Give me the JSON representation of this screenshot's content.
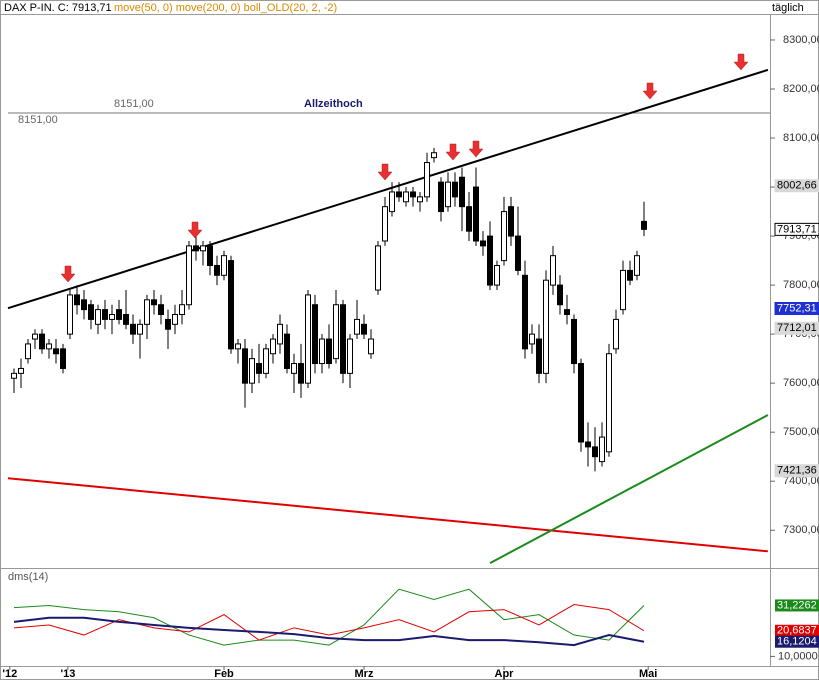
{
  "chart_data": {
    "type": "candlestick",
    "title": "DAX P-IN. C: 7913,71",
    "subtitle": "move(50, 0) move(200, 0) boll_OLD(20, 2, -2)",
    "period": "täglich",
    "ylim": [
      7225,
      8353
    ],
    "yticks": [
      {
        "value": 7300,
        "label": "7300,00"
      },
      {
        "value": 7400,
        "label": "7400,00"
      },
      {
        "value": 7500,
        "label": "7500,00"
      },
      {
        "value": 7600,
        "label": "7600,00"
      },
      {
        "value": 7700,
        "label": "7700,00"
      },
      {
        "value": 7800,
        "label": "7800,00"
      },
      {
        "value": 7900,
        "label": "7900,00"
      },
      {
        "value": 8000,
        "label": "8000,00"
      },
      {
        "value": 8100,
        "label": "8100,00"
      },
      {
        "value": 8200,
        "label": "8200,00"
      },
      {
        "value": 8300,
        "label": "8300,00"
      }
    ],
    "xticks": [
      {
        "value": -0.6,
        "label": "'12"
      },
      {
        "value": 7.7,
        "label": "'13"
      },
      {
        "value": 30,
        "label": "Feb"
      },
      {
        "value": 50,
        "label": "Mrz"
      },
      {
        "value": 70,
        "label": "Apr"
      },
      {
        "value": 90.6,
        "label": "Mai"
      }
    ],
    "candles": [
      [
        7610,
        7630,
        7580,
        7620
      ],
      [
        7620,
        7650,
        7590,
        7630
      ],
      [
        7650,
        7690,
        7640,
        7680
      ],
      [
        7690,
        7710,
        7670,
        7700
      ],
      [
        7700,
        7710,
        7660,
        7670
      ],
      [
        7670,
        7690,
        7650,
        7680
      ],
      [
        7670,
        7690,
        7640,
        7660
      ],
      [
        7670,
        7680,
        7620,
        7630
      ],
      [
        7700,
        7790,
        7690,
        7780
      ],
      [
        7780,
        7800,
        7740,
        7760
      ],
      [
        7770,
        7790,
        7730,
        7750
      ],
      [
        7760,
        7770,
        7710,
        7730
      ],
      [
        7720,
        7760,
        7700,
        7750
      ],
      [
        7750,
        7770,
        7710,
        7730
      ],
      [
        7730,
        7760,
        7700,
        7740
      ],
      [
        7750,
        7770,
        7720,
        7730
      ],
      [
        7740,
        7790,
        7710,
        7720
      ],
      [
        7720,
        7740,
        7680,
        7700
      ],
      [
        7700,
        7730,
        7650,
        7720
      ],
      [
        7720,
        7780,
        7690,
        7770
      ],
      [
        7770,
        7790,
        7740,
        7760
      ],
      [
        7760,
        7780,
        7720,
        7740
      ],
      [
        7730,
        7750,
        7670,
        7710
      ],
      [
        7720,
        7760,
        7700,
        7740
      ],
      [
        7740,
        7790,
        7720,
        7760
      ],
      [
        7760,
        7890,
        7750,
        7880
      ],
      [
        7880,
        7900,
        7850,
        7870
      ],
      [
        7870,
        7890,
        7840,
        7880
      ],
      [
        7880,
        7890,
        7820,
        7840
      ],
      [
        7840,
        7860,
        7800,
        7820
      ],
      [
        7820,
        7870,
        7810,
        7860
      ],
      [
        7850,
        7860,
        7660,
        7670
      ],
      [
        7670,
        7690,
        7640,
        7680
      ],
      [
        7670,
        7690,
        7550,
        7600
      ],
      [
        7600,
        7670,
        7580,
        7650
      ],
      [
        7640,
        7680,
        7600,
        7620
      ],
      [
        7620,
        7680,
        7610,
        7670
      ],
      [
        7660,
        7700,
        7640,
        7690
      ],
      [
        7680,
        7740,
        7660,
        7720
      ],
      [
        7700,
        7720,
        7620,
        7630
      ],
      [
        7620,
        7660,
        7580,
        7640
      ],
      [
        7640,
        7680,
        7570,
        7600
      ],
      [
        7600,
        7790,
        7590,
        7780
      ],
      [
        7760,
        7780,
        7620,
        7640
      ],
      [
        7640,
        7700,
        7620,
        7690
      ],
      [
        7690,
        7720,
        7630,
        7640
      ],
      [
        7650,
        7790,
        7640,
        7760
      ],
      [
        7760,
        7770,
        7600,
        7620
      ],
      [
        7620,
        7700,
        7590,
        7690
      ],
      [
        7700,
        7770,
        7690,
        7730
      ],
      [
        7720,
        7740,
        7690,
        7700
      ],
      [
        7660,
        7710,
        7650,
        7690
      ],
      [
        7790,
        7890,
        7780,
        7880
      ],
      [
        7890,
        7980,
        7880,
        7960
      ],
      [
        7950,
        8010,
        7940,
        7990
      ],
      [
        7990,
        8010,
        7970,
        7980
      ],
      [
        7970,
        8000,
        7960,
        7990
      ],
      [
        7990,
        8000,
        7960,
        7980
      ],
      [
        7970,
        7990,
        7950,
        7980
      ],
      [
        7980,
        8070,
        7970,
        8050
      ],
      [
        8060,
        8080,
        8050,
        8070
      ],
      [
        8010,
        8020,
        7930,
        7950
      ],
      [
        7960,
        8030,
        7950,
        8010
      ],
      [
        8010,
        8030,
        7960,
        7980
      ],
      [
        8020,
        8040,
        7910,
        7960
      ],
      [
        7960,
        7990,
        7890,
        7910
      ],
      [
        8000,
        8040,
        7880,
        7890
      ],
      [
        7890,
        7910,
        7860,
        7880
      ],
      [
        7900,
        7930,
        7790,
        7800
      ],
      [
        7800,
        7850,
        7790,
        7840
      ],
      [
        7850,
        7980,
        7840,
        7950
      ],
      [
        7960,
        7980,
        7880,
        7900
      ],
      [
        7900,
        7960,
        7820,
        7830
      ],
      [
        7820,
        7850,
        7650,
        7670
      ],
      [
        7680,
        7720,
        7660,
        7700
      ],
      [
        7690,
        7720,
        7600,
        7620
      ],
      [
        7620,
        7830,
        7600,
        7810
      ],
      [
        7800,
        7880,
        7780,
        7860
      ],
      [
        7800,
        7820,
        7740,
        7760
      ],
      [
        7750,
        7780,
        7720,
        7740
      ],
      [
        7730,
        7740,
        7620,
        7640
      ],
      [
        7640,
        7650,
        7460,
        7480
      ],
      [
        7480,
        7520,
        7430,
        7470
      ],
      [
        7470,
        7510,
        7420,
        7450
      ],
      [
        7440,
        7520,
        7430,
        7490
      ],
      [
        7460,
        7680,
        7450,
        7660
      ],
      [
        7670,
        7750,
        7660,
        7730
      ],
      [
        7750,
        7850,
        7740,
        7830
      ],
      [
        7830,
        7850,
        7800,
        7810
      ],
      [
        7820,
        7870,
        7810,
        7860
      ],
      [
        7930,
        7970,
        7900,
        7913.71
      ]
    ],
    "lines": [
      {
        "color": "#000000",
        "x": [
          -0.86,
          107.7
        ],
        "y": [
          7753,
          8239
        ]
      },
      {
        "color": "#e00000",
        "x": [
          -0.86,
          107.7
        ],
        "y": [
          7406,
          7257
        ]
      },
      {
        "color": "#1a8a1a",
        "x": [
          68,
          107.7
        ],
        "y": [
          7233,
          7535
        ]
      }
    ],
    "level": {
      "value": 8151,
      "label": "8151,00",
      "name": "Allzeithoch"
    },
    "price_labels": [
      {
        "value": 8002.66,
        "label": "8002,66",
        "color": "#d8d8d8"
      },
      {
        "value": 7913.71,
        "label": "7913,71",
        "color": "#ffffff"
      },
      {
        "value": 7752.31,
        "label": "7752,31",
        "color": "#1f2fd0"
      },
      {
        "value": 7712.01,
        "label": "7712,01",
        "color": "#d8d8d8"
      },
      {
        "value": 7421.36,
        "label": "7421,36",
        "color": "#d8d8d8"
      }
    ],
    "indicator": {
      "title": "dms(14)",
      "ylim": [
        6,
        46
      ],
      "yticks": [
        {
          "value": 10,
          "label": "10,0000"
        }
      ],
      "x": [
        0,
        5,
        10,
        15,
        20,
        25,
        30,
        35,
        40,
        45,
        50,
        55,
        60,
        65,
        70,
        75,
        80,
        85,
        90
      ],
      "series": [
        {
          "color": "#1a8a1a",
          "values": [
            30.3,
            31.2,
            29.5,
            28.6,
            26.1,
            18.9,
            14.7,
            16.8,
            16.8,
            14.7,
            23.1,
            38.0,
            33.7,
            38.0,
            25.3,
            27.4,
            18.9,
            16.8,
            31.2262
          ],
          "label": "31,2262"
        },
        {
          "color": "#e00000",
          "values": [
            21.9,
            23.1,
            18.9,
            25.3,
            21.9,
            20.2,
            27.4,
            16.8,
            21.9,
            18.9,
            21.9,
            25.3,
            20.2,
            28.6,
            29.5,
            23.1,
            31.6,
            29.5,
            20.6837
          ],
          "label": "20,6837"
        },
        {
          "color": "#1a1a6e",
          "values": [
            24.4,
            26.1,
            26.1,
            24.4,
            23.1,
            21.9,
            21.0,
            20.2,
            19.3,
            17.6,
            16.8,
            16.8,
            18.5,
            16.8,
            16.8,
            15.9,
            14.7,
            18.9,
            16.1204
          ],
          "label": "16,1204"
        }
      ]
    }
  }
}
